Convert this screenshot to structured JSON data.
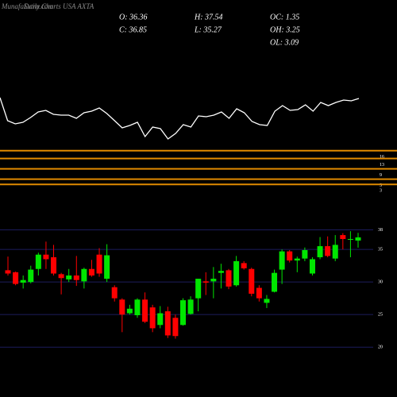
{
  "header": {
    "site": "MunafaSutra.com",
    "title": "Daily Charts USA AXTA",
    "stats": [
      [
        "O: 36.36",
        "H: 37.54",
        "OC: 1.35"
      ],
      [
        "C: 36.85",
        "L: 35.27",
        "OH: 3.25"
      ],
      [
        "",
        "",
        "OL: 3.09"
      ]
    ]
  },
  "chart_data": [
    {
      "type": "line",
      "color": "#ffffff",
      "ylim": [
        0,
        70
      ],
      "values": [
        57,
        28,
        24,
        26,
        32,
        39,
        41,
        36,
        35,
        35,
        31,
        38,
        40,
        44,
        37,
        28,
        19,
        22,
        26,
        8,
        20,
        18,
        5,
        12,
        23,
        20,
        34,
        33,
        35,
        39,
        31,
        43,
        38,
        27,
        23,
        22,
        40,
        47,
        41,
        42,
        48,
        40,
        51,
        47,
        51,
        54,
        53,
        56
      ]
    },
    {
      "type": "hlines",
      "color": "#e08a00",
      "ylim": [
        0,
        19
      ],
      "values": [
        16,
        13,
        9,
        5,
        3
      ]
    },
    {
      "type": "candlestick",
      "up_color": "#00e600",
      "down_color": "#ff0000",
      "grid": true,
      "ylim": [
        16,
        41.6
      ],
      "yticks": [
        20,
        25,
        30,
        35,
        38
      ],
      "open": [
        31.8,
        31.5,
        29.9,
        30,
        32,
        34.2,
        33.8,
        31.2,
        30.4,
        31,
        30.1,
        32,
        34.2,
        30.5,
        29.2,
        27.3,
        25.2,
        24.9,
        27.3,
        26.1,
        23.4,
        25.5,
        24.5,
        23.4,
        25.1,
        27.5,
        30.1,
        30.1,
        31.4,
        31.8,
        29.5,
        32.9,
        32,
        29.1,
        26.8,
        28.5,
        31.9,
        34.7,
        33.3,
        33.6,
        31.3,
        33.8,
        35.5,
        33.6,
        37.2,
        36.5,
        36.36
      ],
      "high": [
        33.9,
        31.6,
        31,
        32.5,
        34.5,
        36.2,
        35.7,
        31.4,
        32,
        34,
        32.2,
        33.4,
        35.2,
        35.8,
        29.5,
        27.5,
        26.5,
        27.5,
        28.4,
        26.5,
        26.3,
        26.2,
        25,
        27.5,
        27.8,
        30.5,
        31.5,
        32.3,
        32.8,
        32,
        34,
        33.2,
        32.2,
        29.5,
        28,
        31.9,
        35,
        34.9,
        33.9,
        35.3,
        33.8,
        36.9,
        37,
        37.2,
        37.5,
        37.8,
        37.54
      ],
      "low": [
        31,
        29.5,
        29,
        29.8,
        31,
        32,
        31,
        28.1,
        30,
        29.4,
        29,
        30.8,
        30.8,
        30,
        27,
        22.3,
        25,
        24.5,
        23.7,
        22.3,
        22.9,
        21.4,
        21.3,
        23.3,
        25,
        25.5,
        28,
        27.5,
        29,
        28.9,
        29.3,
        31.9,
        27.8,
        27,
        26,
        28.4,
        29.7,
        33,
        31.5,
        33.2,
        31,
        33.5,
        33.8,
        33.2,
        35,
        33.8,
        35.27
      ],
      "close": [
        31.3,
        29.7,
        30.3,
        31.9,
        34.2,
        33.5,
        31.3,
        30.6,
        31,
        30.3,
        32,
        31,
        31.3,
        34.1,
        27.5,
        25,
        25.9,
        27.3,
        23.9,
        22.9,
        25.2,
        21.8,
        21.7,
        27.2,
        27.3,
        30.5,
        29.9,
        30.5,
        31.7,
        29.3,
        33.2,
        32.1,
        28.2,
        27.5,
        27.4,
        31.4,
        34.7,
        33.3,
        33.6,
        34.9,
        33.5,
        35.5,
        34,
        35.7,
        36.6,
        36.6,
        36.85
      ]
    }
  ]
}
